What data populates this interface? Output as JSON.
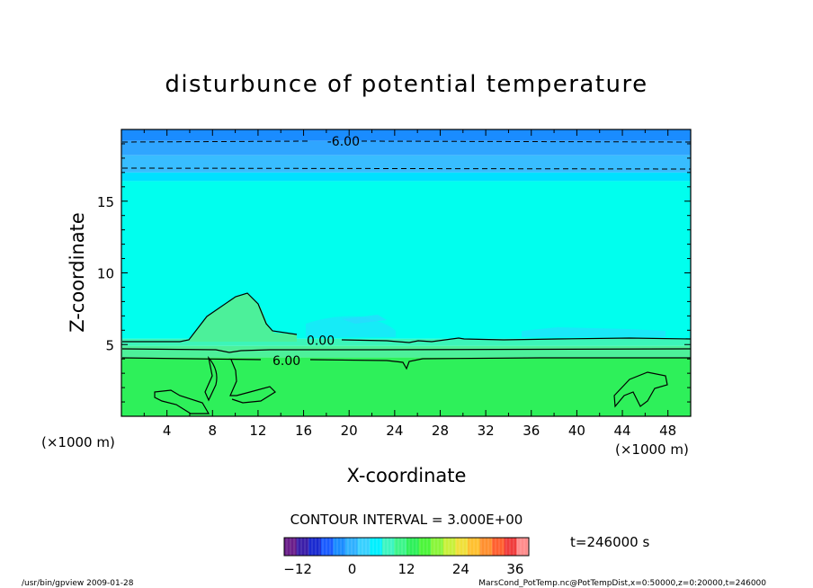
{
  "chart_data": {
    "type": "heatmap",
    "title": "disturbunce of potential temperature",
    "xlabel": "X-coordinate",
    "ylabel": "Z-coordinate",
    "x_unit": "(×1000 m)",
    "z_unit": "(×1000 m)",
    "xlim": [
      0,
      50
    ],
    "ylim": [
      0,
      20
    ],
    "x_ticks": [
      4,
      8,
      12,
      16,
      20,
      24,
      28,
      32,
      36,
      40,
      44,
      48
    ],
    "y_ticks": [
      5,
      10,
      15
    ],
    "contour_interval": "CONTOUR INTERVAL = 3.000E+00",
    "time": "t=246000 s",
    "contour_labels": [
      {
        "value": "-6.00",
        "x": 19.5,
        "z": 19.2
      },
      {
        "value": "0.00",
        "x": 17.5,
        "z": 5.3
      },
      {
        "value": "6.00",
        "x": 14.5,
        "z": 3.9
      }
    ],
    "layers": [
      {
        "z_from": 19.2,
        "z_to": 20,
        "value": -9,
        "color": "#1a8cff"
      },
      {
        "z_from": 18.2,
        "z_to": 19.2,
        "value": -6,
        "color": "#2fa5ff"
      },
      {
        "z_from": 17.0,
        "z_to": 18.2,
        "value": -4,
        "color": "#38bdff"
      },
      {
        "z_from": 16.4,
        "z_to": 17.0,
        "value": -3,
        "color": "#00e0ff"
      },
      {
        "z_from": 5.4,
        "z_to": 16.4,
        "value": 0,
        "color": "#00ffee"
      },
      {
        "z_from": 4.9,
        "z_to": 5.4,
        "value": 2,
        "color": "#3cf5b9"
      },
      {
        "z_from": 4.1,
        "z_to": 4.9,
        "value": 4,
        "color": "#4df09a"
      },
      {
        "z_from": 0,
        "z_to": 4.1,
        "value": 8,
        "color": "#2ef05a"
      }
    ],
    "colorbar": {
      "ticks": [
        "−12",
        "0",
        "12",
        "24",
        "36"
      ],
      "range": [
        -15,
        39
      ],
      "colors": [
        "#6a1e8a",
        "#3b1ea8",
        "#1a2ad0",
        "#1a5cff",
        "#1a8cff",
        "#2fb0ff",
        "#38d0ff",
        "#00f0ff",
        "#3cf5c0",
        "#3cf58a",
        "#2ef05a",
        "#4cf53a",
        "#8af53a",
        "#c8f03a",
        "#f0e03a",
        "#ffc030",
        "#ff9030",
        "#ff6030",
        "#f03c3c",
        "#ff8c8c"
      ]
    }
  },
  "footer": {
    "left": "/usr/bin/gpview   2009-01-28",
    "right": "MarsCond_PotTemp.nc@PotTempDist,x=0:50000,z=0:20000,t=246000"
  }
}
